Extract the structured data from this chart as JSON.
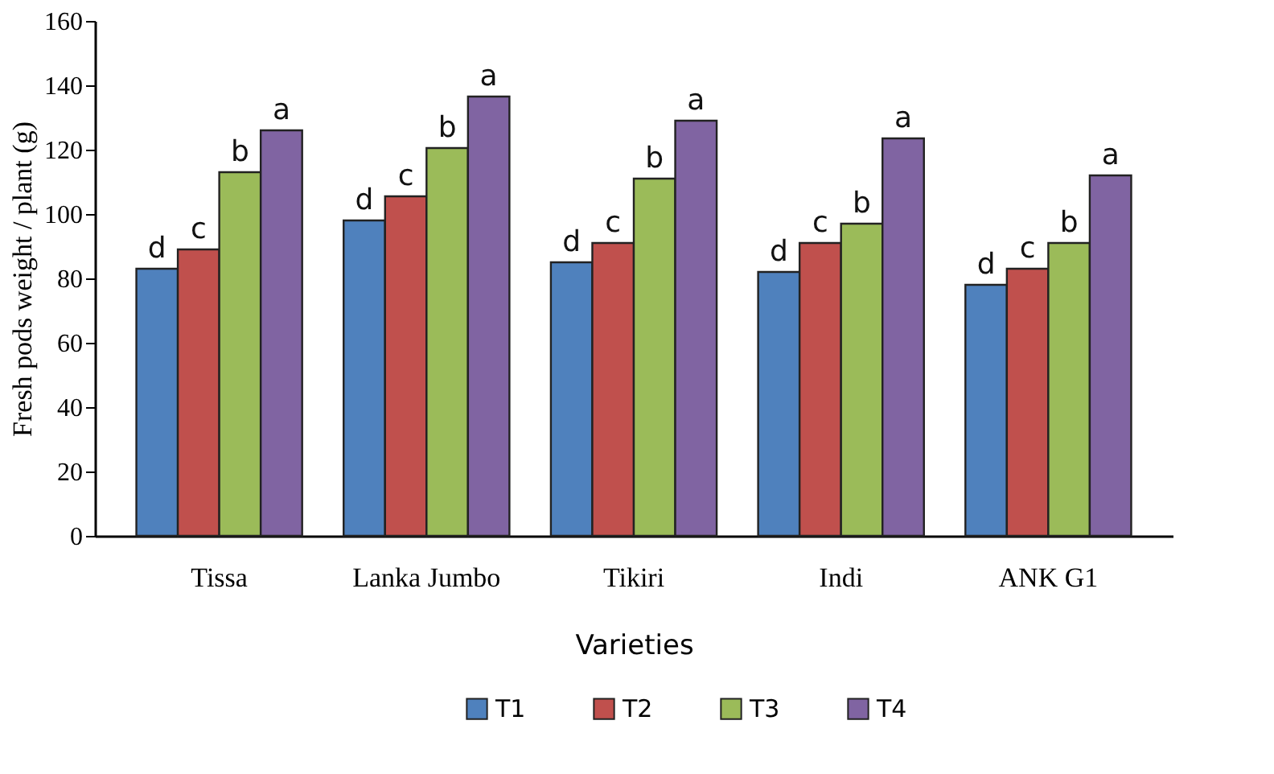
{
  "chart_data": {
    "type": "bar",
    "xlabel": "Varieties",
    "ylabel": "Fresh pods weight / plant (g)",
    "categories": [
      "Tissa",
      "Lanka Jumbo",
      "Tikiri",
      "Indi",
      "ANK G1"
    ],
    "series": [
      {
        "name": "T1",
        "color": "#4f81bd",
        "values": [
          83,
          98,
          85,
          82,
          78
        ],
        "value_labels": [
          "d",
          "d",
          "d",
          "d",
          "d"
        ]
      },
      {
        "name": "T2",
        "color": "#c0504d",
        "values": [
          89,
          105.5,
          91,
          91,
          83
        ],
        "value_labels": [
          "c",
          "c",
          "c",
          "c",
          "c"
        ]
      },
      {
        "name": "T3",
        "color": "#9bbb59",
        "values": [
          113,
          120.5,
          111,
          97,
          91
        ],
        "value_labels": [
          "b",
          "b",
          "b",
          "b",
          "b"
        ]
      },
      {
        "name": "T4",
        "color": "#8064a2",
        "values": [
          126,
          136.5,
          129,
          123.5,
          112
        ],
        "value_labels": [
          "a",
          "a",
          "a",
          "a",
          "a"
        ]
      }
    ],
    "ylim": [
      0,
      160
    ],
    "yticks": [
      0,
      20,
      40,
      60,
      80,
      100,
      120,
      140,
      160
    ],
    "grid": false,
    "legend": "bottom"
  }
}
